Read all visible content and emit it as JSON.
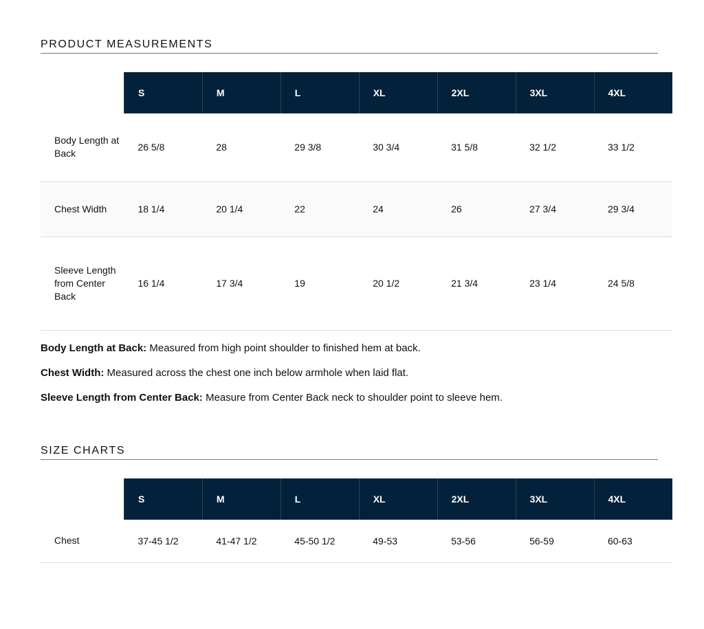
{
  "measurements": {
    "title": "PRODUCT MEASUREMENTS",
    "sizes": [
      "S",
      "M",
      "L",
      "XL",
      "2XL",
      "3XL",
      "4XL"
    ],
    "rows": [
      {
        "label": "Body Length at Back",
        "values": [
          "26 5/8",
          "28",
          "29 3/8",
          "30 3/4",
          "31 5/8",
          "32 1/2",
          "33 1/2"
        ]
      },
      {
        "label": "Chest Width",
        "values": [
          "18 1/4",
          "20 1/4",
          "22",
          "24",
          "26",
          "27 3/4",
          "29 3/4"
        ]
      },
      {
        "label": "Sleeve Length from Center Back",
        "values": [
          "16 1/4",
          "17 3/4",
          "19",
          "20 1/2",
          "21 3/4",
          "23 1/4",
          "24 5/8"
        ]
      }
    ]
  },
  "notes": [
    {
      "term": "Body Length at Back:",
      "text": " Measured from high point shoulder to finished hem at back."
    },
    {
      "term": "Chest Width:",
      "text": " Measured across the chest one inch below armhole when laid flat."
    },
    {
      "term": "Sleeve Length from Center Back:",
      "text": " Measure from Center Back neck to shoulder point to sleeve hem."
    }
  ],
  "size_charts": {
    "title": "SIZE CHARTS",
    "sizes": [
      "S",
      "M",
      "L",
      "XL",
      "2XL",
      "3XL",
      "4XL"
    ],
    "rows": [
      {
        "label": "Chest",
        "values": [
          "37-45 1/2",
          "41-47 1/2",
          "45-50 1/2",
          "49-53",
          "53-56",
          "56-59",
          "60-63"
        ]
      }
    ]
  },
  "colors": {
    "header_bg": "#03213a"
  }
}
